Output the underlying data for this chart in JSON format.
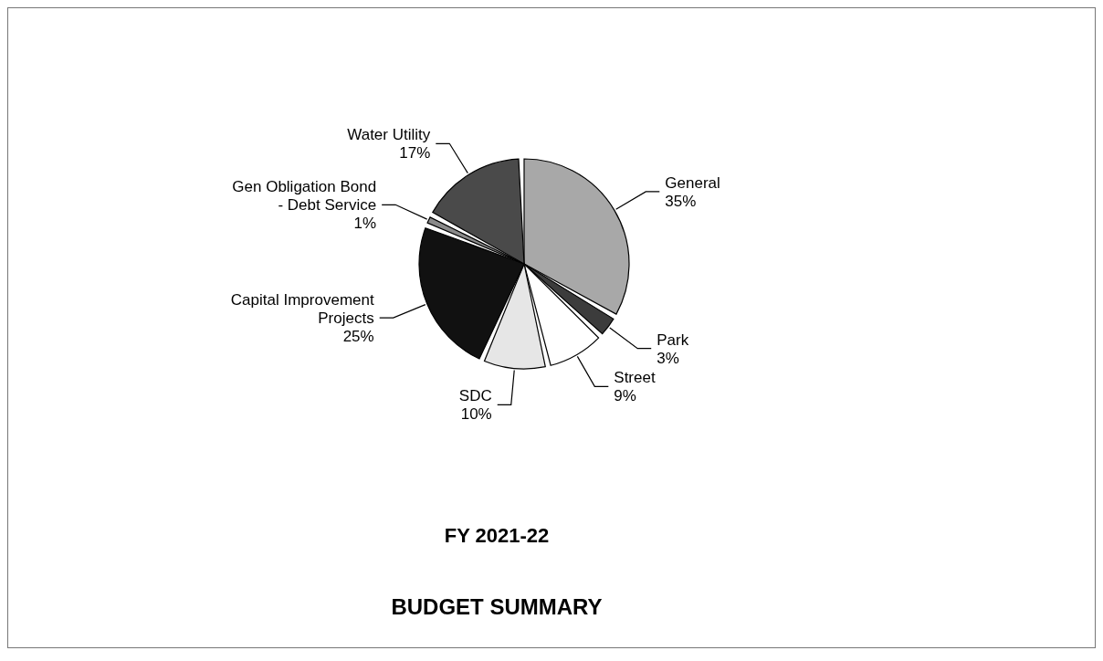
{
  "chart_data": {
    "type": "pie",
    "title": "BUDGET SUMMARY",
    "subtitle": "FY 2021-22",
    "categories": [
      "General",
      "Park",
      "Street",
      "SDC",
      "Capital Improvement Projects",
      "Gen Obligation Bond - Debt Service",
      "Water Utility"
    ],
    "values": [
      35,
      3,
      9,
      10,
      25,
      1,
      17
    ],
    "colors": [
      "#a8a8a8",
      "#3c3c3c",
      "#ffffff",
      "#e6e6e6",
      "#111111",
      "#8a8a8a",
      "#4a4a4a"
    ],
    "value_labels": [
      "35%",
      "3%",
      "9%",
      "10%",
      "25%",
      "1%",
      "17%"
    ]
  }
}
